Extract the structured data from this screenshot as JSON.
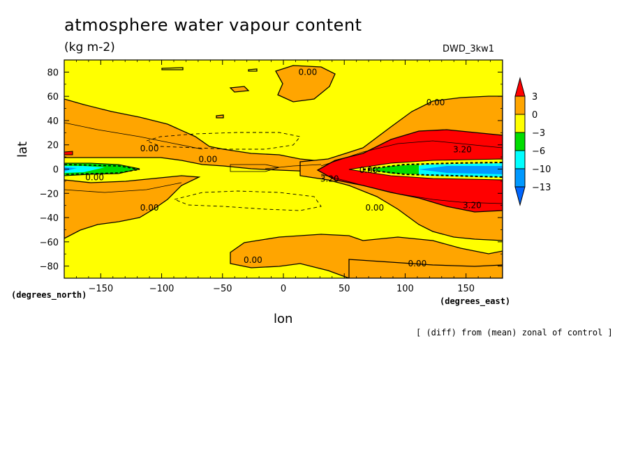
{
  "chart_data": {
    "type": "heatmap",
    "title": "atmosphere water vapour content",
    "units": "(kg m-2)",
    "dataset": "DWD_3kw1",
    "xlabel": "lon",
    "ylabel": "lat",
    "x_units": "(degrees_east)",
    "y_units": "(degrees_north)",
    "xlim": [
      -180,
      180
    ],
    "ylim": [
      -90,
      90
    ],
    "x_ticks": [
      -150,
      -100,
      -50,
      0,
      50,
      100,
      150
    ],
    "x_tick_labels": [
      "−150",
      "−100",
      "−50",
      "0",
      "50",
      "100",
      "150"
    ],
    "y_ticks": [
      80,
      60,
      40,
      20,
      0,
      -20,
      -40,
      -60,
      -80
    ],
    "y_tick_labels": [
      "80",
      "60",
      "40",
      "20",
      "0",
      "−20",
      "−40",
      "−60",
      "−80"
    ],
    "note": "[ (diff) from (mean) zonal of control ]",
    "colorbar": {
      "labels": [
        "3",
        "0",
        "−3",
        "−6",
        "−10",
        "−13"
      ],
      "bounds": [
        3,
        0,
        -3,
        -6,
        -10,
        -13
      ],
      "colors": [
        "#ff0000",
        "#ffa500",
        "#ffff00",
        "#00dd00",
        "#00ffff",
        "#0099ff",
        "#0066ff"
      ]
    },
    "contour_labels": [
      {
        "text": "0.00",
        "lon": 20,
        "lat": 80
      },
      {
        "text": "0.00",
        "lon": 125,
        "lat": 55
      },
      {
        "text": "0.00",
        "lon": -110,
        "lat": 17
      },
      {
        "text": "0.00",
        "lon": -62,
        "lat": 8
      },
      {
        "text": "0.00",
        "lon": -155,
        "lat": -7
      },
      {
        "text": "0.00",
        "lon": -110,
        "lat": -32
      },
      {
        "text": "3.20",
        "lon": 147,
        "lat": 16
      },
      {
        "text": "3.20",
        "lon": 38,
        "lat": -8
      },
      {
        "text": "0.00",
        "lon": 75,
        "lat": -32
      },
      {
        "text": "3.20",
        "lon": 155,
        "lat": -30
      },
      {
        "text": "0.00",
        "lon": -25,
        "lat": -75
      },
      {
        "text": "0.00",
        "lon": 110,
        "lat": -78
      },
      {
        "text": "0.00",
        "lon": 70,
        "lat": -1
      }
    ]
  }
}
